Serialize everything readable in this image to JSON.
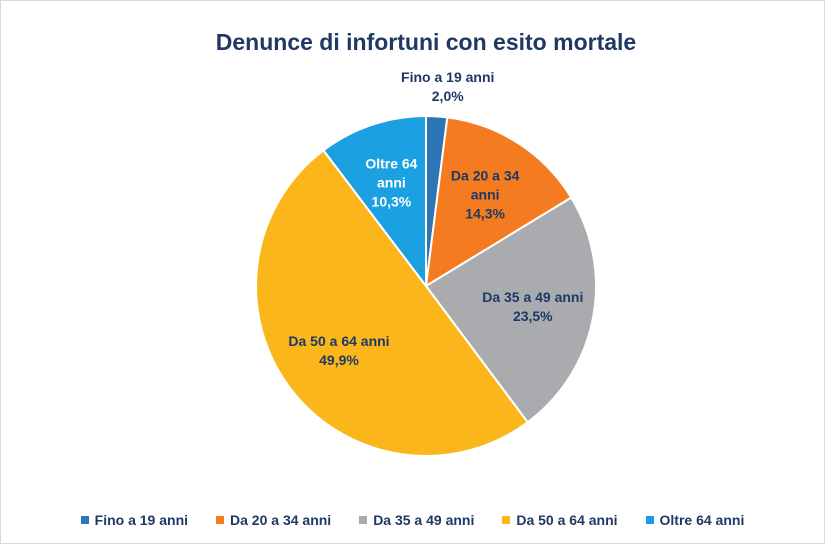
{
  "chart_data": {
    "type": "pie",
    "title": "Denunce di infortuni con esito mortale",
    "categories": [
      "Fino a 19 anni",
      "Da 20 a 34 anni",
      "Da 35 a 49 anni",
      "Da 50 a 64 anni",
      "Oltre 64 anni"
    ],
    "values": [
      2.0,
      14.3,
      23.5,
      49.9,
      10.3
    ],
    "value_labels": [
      "2,0%",
      "14,3%",
      "23,5%",
      "49,9%",
      "10,3%"
    ],
    "colors": [
      "#2e75b6",
      "#f47b20",
      "#a9abae",
      "#fbb61b",
      "#1ba1e2"
    ],
    "label_colors": [
      "#1f3864",
      "#1f3864",
      "#1f3864",
      "#1f3864",
      "#ffffff"
    ],
    "legend": "bottom"
  }
}
